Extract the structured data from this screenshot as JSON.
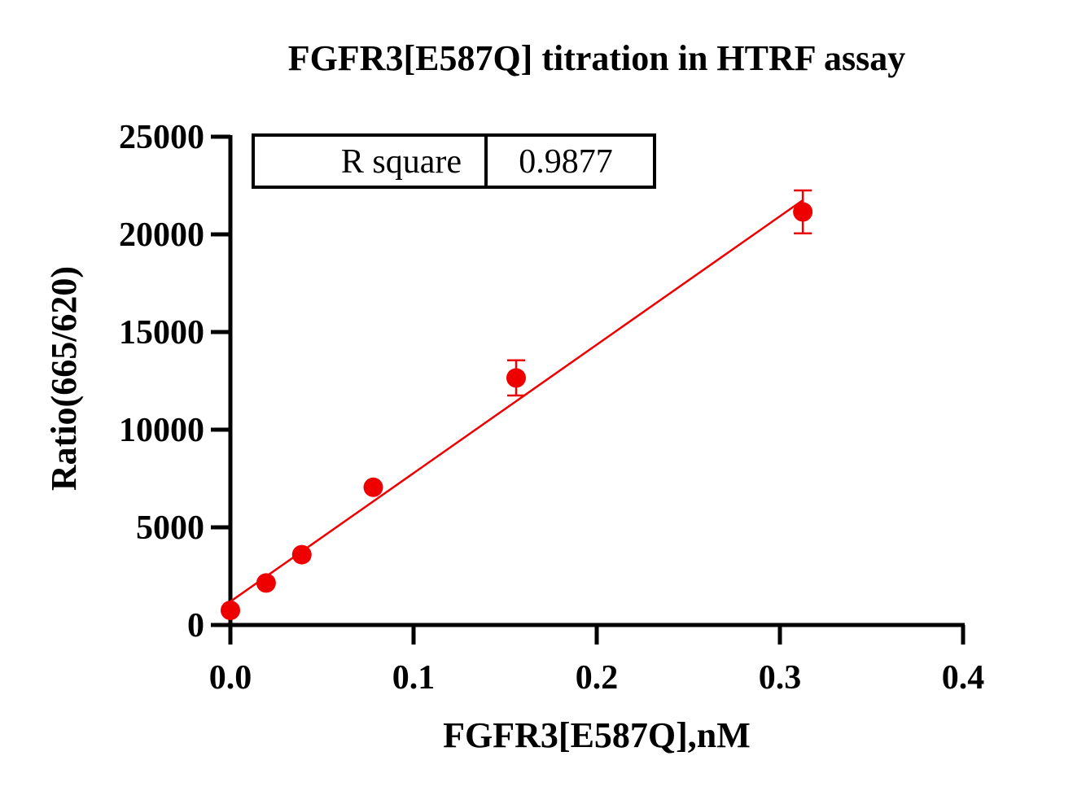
{
  "chart_data": {
    "type": "scatter",
    "title": "FGFR3[E587Q] titration in HTRF assay",
    "xlabel": "FGFR3[E587Q],nM",
    "ylabel": "Ratio(665/620)",
    "xlim": [
      0,
      0.4
    ],
    "ylim": [
      0,
      25000
    ],
    "x_ticks": [
      "0.0",
      "0.1",
      "0.2",
      "0.3",
      "0.4"
    ],
    "y_ticks": [
      "0",
      "5000",
      "10000",
      "15000",
      "20000",
      "25000"
    ],
    "points": [
      {
        "x": 0.0,
        "y": 750,
        "err": 0
      },
      {
        "x": 0.0195,
        "y": 2150,
        "err": 0
      },
      {
        "x": 0.039,
        "y": 3600,
        "err": 0
      },
      {
        "x": 0.078,
        "y": 7050,
        "err": 0
      },
      {
        "x": 0.156,
        "y": 12650,
        "err": 900
      },
      {
        "x": 0.3125,
        "y": 21150,
        "err": 1100
      }
    ],
    "fit_line": {
      "x": [
        0.0,
        0.3125
      ],
      "y": [
        1200,
        21750
      ]
    },
    "stats_table": {
      "label": "R square",
      "value": "0.9877"
    },
    "color": "#ee0000",
    "grid": false,
    "legend": "none"
  }
}
